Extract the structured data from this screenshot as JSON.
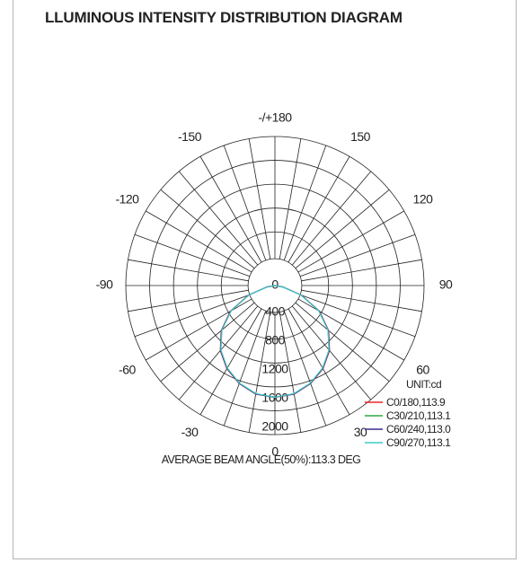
{
  "title": "LLUMINOUS INTENSITY DISTRIBUTION DIAGRAM",
  "caption": "AVERAGE BEAM ANGLE(50%):113.3 DEG",
  "chart_data": {
    "type": "polar",
    "title": "LLUMINOUS INTENSITY DISTRIBUTION DIAGRAM",
    "unit_label": "UNIT:cd",
    "r_range": [
      0,
      2000
    ],
    "r_ticks": [
      0,
      400,
      800,
      1200,
      1600,
      2000
    ],
    "angle_labels": [
      {
        "angle": 180,
        "text": "-/+180"
      },
      {
        "angle": 150,
        "text": "150"
      },
      {
        "angle": -150,
        "text": "-150"
      },
      {
        "angle": 120,
        "text": "120"
      },
      {
        "angle": -120,
        "text": "-120"
      },
      {
        "angle": 90,
        "text": "90"
      },
      {
        "angle": -90,
        "text": "-90"
      },
      {
        "angle": 60,
        "text": "60"
      },
      {
        "angle": -60,
        "text": "-60"
      },
      {
        "angle": 30,
        "text": "30"
      },
      {
        "angle": -30,
        "text": "-30"
      },
      {
        "angle": 0,
        "text": "0"
      }
    ],
    "angles": [
      0,
      10,
      20,
      30,
      40,
      50,
      60,
      70,
      80,
      90
    ],
    "series": [
      {
        "name": "C0/180,113.9",
        "color": "#e8262b",
        "values": [
          1500,
          1480,
          1400,
          1290,
          1140,
          940,
          690,
          380,
          110,
          0
        ]
      },
      {
        "name": "C30/210,113.1",
        "color": "#2aa845",
        "values": [
          1500,
          1475,
          1395,
          1280,
          1130,
          930,
          680,
          370,
          105,
          0
        ]
      },
      {
        "name": "C60/240,113.0",
        "color": "#3b2d8f",
        "values": [
          1500,
          1478,
          1398,
          1285,
          1135,
          935,
          685,
          375,
          108,
          0
        ]
      },
      {
        "name": "C90/270,113.1",
        "color": "#3fc8c8",
        "values": [
          1500,
          1472,
          1392,
          1278,
          1128,
          928,
          678,
          368,
          100,
          0
        ]
      }
    ],
    "legend_position": "bottom-right"
  }
}
